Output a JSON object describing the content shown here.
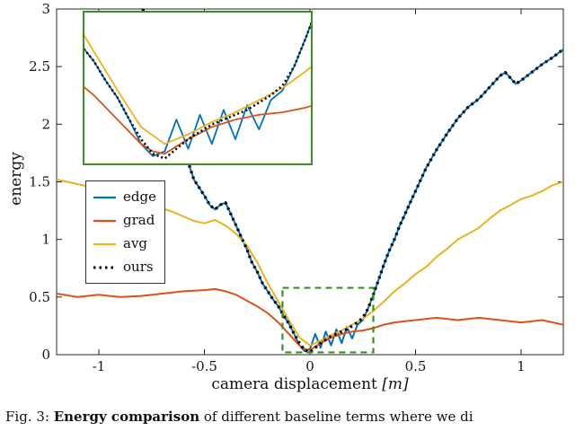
{
  "figure": {
    "ylabel": "energy",
    "xlabel": "camera displacement",
    "xlabel_unit": "[m]"
  },
  "caption": {
    "prefix": "Fig. 3: ",
    "bold": "Energy comparison",
    "rest": " of different baseline terms where we di"
  },
  "legend": {
    "items": [
      {
        "label": "edge"
      },
      {
        "label": "grad"
      },
      {
        "label": "avg"
      },
      {
        "label": "ours"
      }
    ]
  },
  "chart_data": {
    "type": "line",
    "title": "",
    "xlabel": "camera displacement [m]",
    "ylabel": "energy",
    "xlim": [
      -1.2,
      1.2
    ],
    "ylim": [
      0,
      3
    ],
    "xticks": [
      -1,
      -0.5,
      0,
      0.5,
      1
    ],
    "xtick_labels": [
      "-1",
      "-0.5",
      "0",
      "0.5",
      "1"
    ],
    "yticks": [
      0,
      0.5,
      1,
      1.5,
      2,
      2.5,
      3
    ],
    "ytick_labels": [
      "0",
      "0.5",
      "1",
      "1.5",
      "2",
      "2.5",
      "3"
    ],
    "grid": false,
    "legend_position": "west",
    "axis_color": "#262626",
    "series": [
      {
        "name": "edge",
        "color": "#0072BD",
        "style": "solid",
        "width": 2,
        "x": [
          -0.8,
          -0.75,
          -0.7,
          -0.65,
          -0.6,
          -0.55,
          -0.5,
          -0.475,
          -0.45,
          -0.425,
          -0.4,
          -0.375,
          -0.35,
          -0.325,
          -0.3,
          -0.275,
          -0.25,
          -0.225,
          -0.2,
          -0.175,
          -0.15,
          -0.125,
          -0.1,
          -0.075,
          -0.05,
          -0.025,
          0.0,
          0.025,
          0.05,
          0.075,
          0.1,
          0.125,
          0.15,
          0.175,
          0.2,
          0.225,
          0.25,
          0.275,
          0.3,
          0.325,
          0.35,
          0.375,
          0.4,
          0.425,
          0.45,
          0.475,
          0.5,
          0.55,
          0.6,
          0.65,
          0.7,
          0.75,
          0.8,
          0.85,
          0.9,
          0.925,
          0.95,
          0.975,
          1.0,
          1.05,
          1.1,
          1.15,
          1.2
        ],
        "y": [
          3.05,
          2.75,
          2.45,
          2.1,
          1.8,
          1.52,
          1.38,
          1.3,
          1.26,
          1.3,
          1.32,
          1.22,
          1.12,
          1.02,
          0.92,
          0.8,
          0.72,
          0.62,
          0.55,
          0.48,
          0.42,
          0.34,
          0.27,
          0.18,
          0.08,
          0.03,
          0.05,
          0.18,
          0.06,
          0.2,
          0.08,
          0.22,
          0.1,
          0.24,
          0.14,
          0.26,
          0.3,
          0.4,
          0.52,
          0.65,
          0.78,
          0.9,
          1.0,
          1.12,
          1.22,
          1.32,
          1.42,
          1.62,
          1.78,
          1.92,
          2.05,
          2.15,
          2.22,
          2.32,
          2.42,
          2.45,
          2.4,
          2.35,
          2.38,
          2.45,
          2.52,
          2.58,
          2.65
        ]
      },
      {
        "name": "grad",
        "color": "#D95319",
        "style": "solid",
        "width": 2,
        "x": [
          -1.2,
          -1.1,
          -1.0,
          -0.9,
          -0.8,
          -0.7,
          -0.6,
          -0.5,
          -0.45,
          -0.4,
          -0.35,
          -0.3,
          -0.25,
          -0.2,
          -0.15,
          -0.1,
          -0.05,
          -0.025,
          0.0,
          0.05,
          0.1,
          0.15,
          0.2,
          0.25,
          0.3,
          0.35,
          0.4,
          0.45,
          0.5,
          0.6,
          0.7,
          0.8,
          0.9,
          1.0,
          1.1,
          1.2
        ],
        "y": [
          0.53,
          0.5,
          0.52,
          0.5,
          0.51,
          0.53,
          0.55,
          0.56,
          0.57,
          0.55,
          0.52,
          0.47,
          0.42,
          0.36,
          0.28,
          0.18,
          0.08,
          0.05,
          0.04,
          0.1,
          0.15,
          0.18,
          0.2,
          0.21,
          0.23,
          0.26,
          0.28,
          0.29,
          0.3,
          0.32,
          0.3,
          0.32,
          0.3,
          0.28,
          0.3,
          0.26
        ]
      },
      {
        "name": "avg",
        "color": "#EDB120",
        "style": "solid",
        "width": 2,
        "x": [
          -1.2,
          -1.1,
          -1.0,
          -0.9,
          -0.85,
          -0.8,
          -0.75,
          -0.7,
          -0.65,
          -0.6,
          -0.55,
          -0.5,
          -0.45,
          -0.4,
          -0.35,
          -0.3,
          -0.25,
          -0.2,
          -0.15,
          -0.1,
          -0.05,
          0.0,
          0.05,
          0.1,
          0.15,
          0.2,
          0.25,
          0.3,
          0.35,
          0.4,
          0.45,
          0.5,
          0.55,
          0.6,
          0.65,
          0.7,
          0.75,
          0.8,
          0.85,
          0.9,
          0.95,
          1.0,
          1.05,
          1.1,
          1.15,
          1.2
        ],
        "y": [
          1.52,
          1.48,
          1.44,
          1.38,
          1.35,
          1.33,
          1.3,
          1.27,
          1.24,
          1.2,
          1.16,
          1.14,
          1.17,
          1.12,
          1.05,
          0.95,
          0.8,
          0.62,
          0.46,
          0.3,
          0.15,
          0.08,
          0.12,
          0.17,
          0.21,
          0.26,
          0.31,
          0.38,
          0.46,
          0.55,
          0.62,
          0.7,
          0.76,
          0.85,
          0.92,
          1.0,
          1.05,
          1.1,
          1.18,
          1.25,
          1.3,
          1.35,
          1.38,
          1.42,
          1.47,
          1.5
        ]
      },
      {
        "name": "ours",
        "color": "#000000",
        "style": "dotted",
        "width": 3.2,
        "x": [
          -0.8,
          -0.75,
          -0.7,
          -0.65,
          -0.6,
          -0.55,
          -0.5,
          -0.475,
          -0.45,
          -0.425,
          -0.4,
          -0.375,
          -0.35,
          -0.325,
          -0.3,
          -0.275,
          -0.25,
          -0.225,
          -0.2,
          -0.175,
          -0.15,
          -0.125,
          -0.1,
          -0.075,
          -0.05,
          -0.025,
          0.0,
          0.025,
          0.05,
          0.075,
          0.1,
          0.125,
          0.15,
          0.175,
          0.2,
          0.225,
          0.25,
          0.275,
          0.3,
          0.325,
          0.35,
          0.375,
          0.4,
          0.425,
          0.45,
          0.475,
          0.5,
          0.55,
          0.6,
          0.65,
          0.7,
          0.75,
          0.8,
          0.85,
          0.9,
          0.925,
          0.95,
          0.975,
          1.0,
          1.05,
          1.1,
          1.15,
          1.2
        ],
        "y": [
          3.05,
          2.75,
          2.45,
          2.1,
          1.8,
          1.52,
          1.38,
          1.3,
          1.26,
          1.3,
          1.32,
          1.22,
          1.12,
          1.02,
          0.92,
          0.8,
          0.72,
          0.62,
          0.55,
          0.48,
          0.42,
          0.34,
          0.27,
          0.18,
          0.1,
          0.04,
          0.02,
          0.06,
          0.1,
          0.13,
          0.16,
          0.18,
          0.2,
          0.22,
          0.25,
          0.28,
          0.32,
          0.4,
          0.52,
          0.65,
          0.78,
          0.9,
          1.0,
          1.12,
          1.22,
          1.32,
          1.42,
          1.62,
          1.78,
          1.92,
          2.05,
          2.15,
          2.22,
          2.32,
          2.42,
          2.45,
          2.4,
          2.35,
          2.38,
          2.45,
          2.52,
          2.58,
          2.65
        ]
      }
    ],
    "zoom_region": {
      "x0": -0.13,
      "x1": 0.3,
      "y0": 0.02,
      "y1": 0.58,
      "color": "#3e8e23",
      "style": "dashed"
    },
    "inset": {
      "xlim": [
        -0.17,
        0.31
      ],
      "ylim": [
        0,
        0.62
      ],
      "border_color": "#3e8e23"
    }
  }
}
